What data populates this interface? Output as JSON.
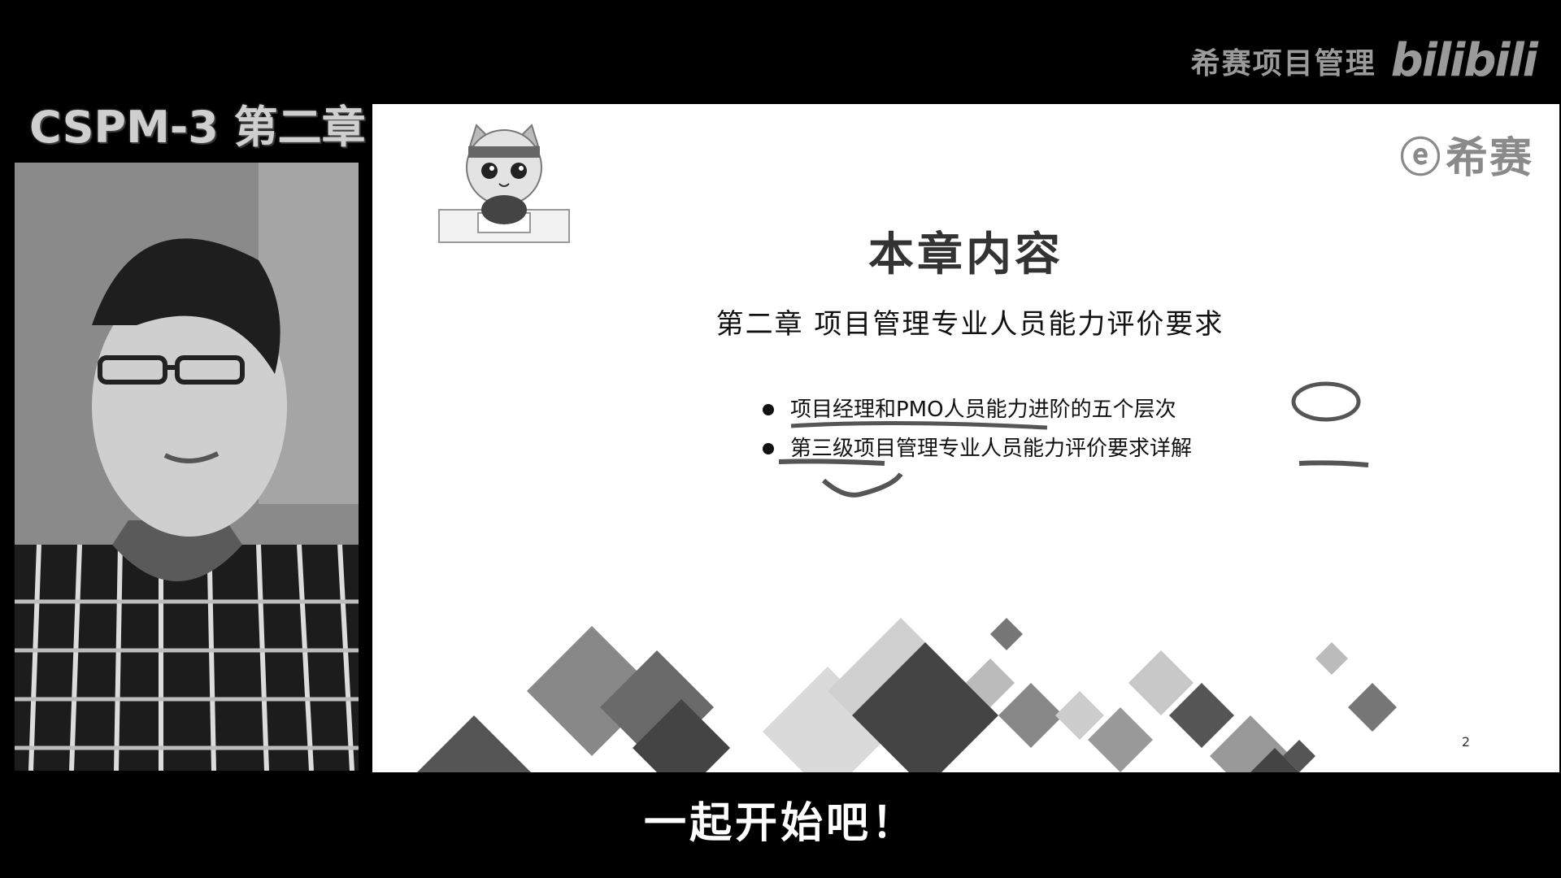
{
  "watermark": {
    "channel": "希赛项目管理",
    "logo": "bilibili"
  },
  "chapter_label": "CSPM-3 第二章",
  "slide": {
    "brand_mark": "ⓔ",
    "brand_name": "希赛",
    "title": "本章内容",
    "subtitle": "第二章   项目管理专业人员能力评价要求",
    "bullets": [
      "项目经理和PMO人员能力进阶的五个层次",
      "第三级项目管理专业人员能力评价要求详解"
    ],
    "page_number": "2"
  },
  "caption": "一起开始吧！"
}
